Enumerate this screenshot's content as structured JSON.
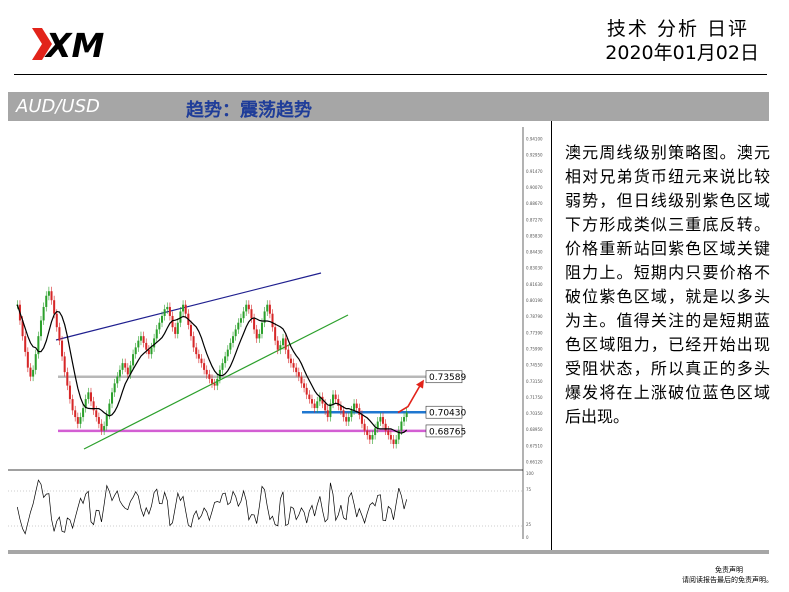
{
  "brand": {
    "logo_text": "XM"
  },
  "header": {
    "title": "技术 分析 日评",
    "date": "2020年01月02日"
  },
  "section_bar": {
    "pair": "AUD/USD",
    "trend": "趋势：震荡趋势"
  },
  "analysis": {
    "text": "澳元周线级别策略图。澳元相对兄弟货币纽元来说比较弱势，但日线级别紫色区域下方形成类似三重底反转。价格重新站回紫色区域关键阻力上。短期内只要价格不破位紫色区域，就是以多头为主。值得关注的是短期蓝色区域阻力，已经开始出现受阻状态，所以真正的多头爆发将在上涨破位蓝色区域后出现。"
  },
  "disclaimer": {
    "title": "免责声明",
    "text": "请阅读报告最后的免责声明。"
  },
  "colors": {
    "bar_bg": "#a6a6a6",
    "trend_text": "#1f3d99",
    "logo_red": "#e2231a",
    "purple_zone": "#d35ed3",
    "blue_zone": "#1f77d0",
    "upper_channel": "#1f1f8f",
    "lower_channel": "#2ca02c",
    "ma_line": "#000000",
    "forecast_arrow": "#e2231a"
  },
  "chart_data": {
    "type": "candlestick",
    "series_note": "",
    "y_ticks": [
      "0.94100",
      "0.92950",
      "0.91470",
      "0.90070",
      "0.88670",
      "0.87270",
      "0.85830",
      "0.84430",
      "0.83030",
      "0.81630",
      "0.80190",
      "0.78790",
      "0.77390",
      "0.75990",
      "0.74550",
      "0.73150",
      "0.71750",
      "0.70350",
      "0.68950",
      "0.67510",
      "0.66120"
    ],
    "ylim": [
      0.66,
      0.9475
    ],
    "levels": [
      {
        "label": "0.73589",
        "value": 0.73589,
        "color": "gray"
      },
      {
        "label": "0.70430",
        "value": 0.7043,
        "color": "blue"
      },
      {
        "label": "0.68765",
        "value": 0.68765,
        "color": "purple"
      }
    ],
    "closes": [
      0.8,
      0.786,
      0.772,
      0.758,
      0.744,
      0.736,
      0.742,
      0.756,
      0.772,
      0.786,
      0.798,
      0.808,
      0.812,
      0.804,
      0.792,
      0.78,
      0.768,
      0.754,
      0.74,
      0.728,
      0.716,
      0.706,
      0.7,
      0.694,
      0.7,
      0.708,
      0.716,
      0.722,
      0.714,
      0.706,
      0.7,
      0.694,
      0.688,
      0.692,
      0.702,
      0.712,
      0.722,
      0.73,
      0.736,
      0.742,
      0.748,
      0.744,
      0.738,
      0.746,
      0.756,
      0.762,
      0.768,
      0.772,
      0.766,
      0.76,
      0.756,
      0.762,
      0.77,
      0.778,
      0.784,
      0.79,
      0.796,
      0.798,
      0.79,
      0.78,
      0.774,
      0.784,
      0.794,
      0.8,
      0.792,
      0.782,
      0.772,
      0.762,
      0.756,
      0.752,
      0.748,
      0.742,
      0.738,
      0.734,
      0.73,
      0.728,
      0.734,
      0.742,
      0.748,
      0.754,
      0.76,
      0.766,
      0.772,
      0.778,
      0.784,
      0.788,
      0.794,
      0.8,
      0.796,
      0.788,
      0.778,
      0.77,
      0.774,
      0.784,
      0.794,
      0.8,
      0.792,
      0.78,
      0.768,
      0.76,
      0.764,
      0.77,
      0.76,
      0.752,
      0.748,
      0.744,
      0.74,
      0.736,
      0.73,
      0.726,
      0.72,
      0.716,
      0.712,
      0.708,
      0.714,
      0.718,
      0.712,
      0.706,
      0.7,
      0.712,
      0.72,
      0.716,
      0.71,
      0.706,
      0.7,
      0.696,
      0.7,
      0.706,
      0.712,
      0.708,
      0.702,
      0.694,
      0.688,
      0.684,
      0.68,
      0.684,
      0.69,
      0.696,
      0.7,
      0.694,
      0.688,
      0.684,
      0.68,
      0.676,
      0.68,
      0.688,
      0.696,
      0.7,
      0.704
    ],
    "oscillator": {
      "levels": [
        "100",
        "75",
        "25",
        "0"
      ]
    }
  }
}
